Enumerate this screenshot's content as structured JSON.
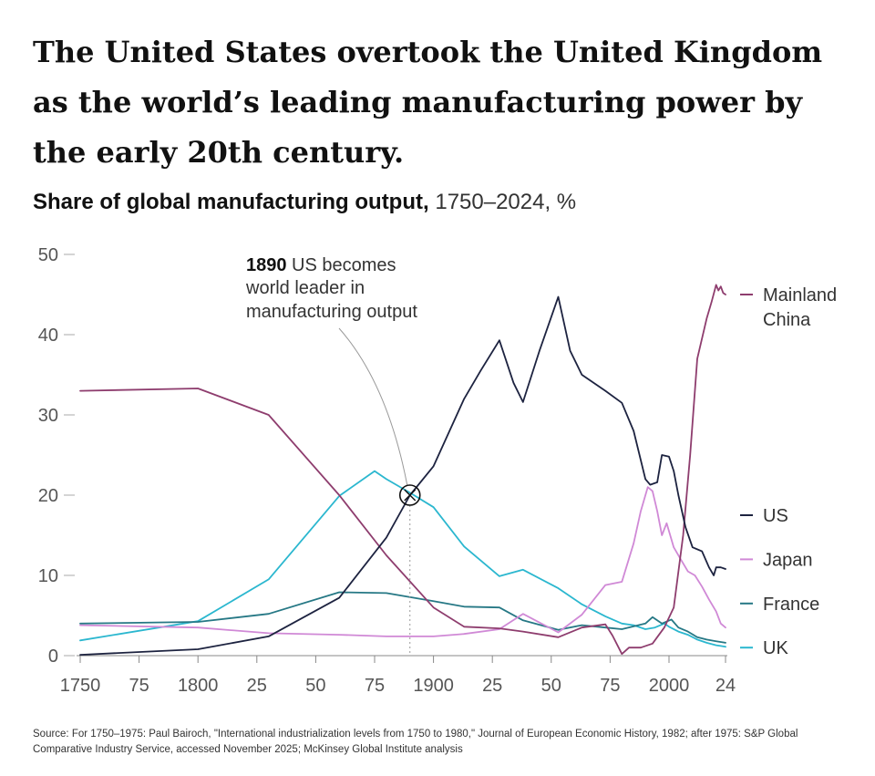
{
  "header": {
    "title": "The United States overtook the United Kingdom as the world’s leading manufacturing power by the early 20th century.",
    "subtitle_bold": "Share of global manufacturing output,",
    "subtitle_rest": " 1750–2024, %"
  },
  "annotation": {
    "year": "1890",
    "line1": " US becomes",
    "line2": "world leader in",
    "line3": "manufacturing output",
    "crossover_year": 1890,
    "crossover_value": 20
  },
  "source": "Source: For 1750–1975: Paul Bairoch, \"International industrialization levels from 1750 to 1980,\" Journal of European Economic History, 1982; after 1975: S&P Global Comparative Industry Service, accessed November 2025; McKinsey Global Institute analysis",
  "chart_data": {
    "type": "line",
    "title": "Share of global manufacturing output, 1750–2024, %",
    "xlabel": "",
    "ylabel": "",
    "xlim": [
      1750,
      2024
    ],
    "ylim": [
      0,
      50
    ],
    "grid": false,
    "x_ticks": [
      1750,
      1775,
      1800,
      1825,
      1850,
      1875,
      1900,
      1925,
      1950,
      1975,
      2000,
      2024
    ],
    "x_tick_labels": [
      "1750",
      "75",
      "1800",
      "25",
      "50",
      "75",
      "1900",
      "25",
      "50",
      "75",
      "2000",
      "24"
    ],
    "y_ticks": [
      0,
      10,
      20,
      30,
      40,
      50
    ],
    "y_tick_labels": [
      "0",
      "10",
      "20",
      "30",
      "40",
      "50"
    ],
    "series": [
      {
        "name": "Mainland China",
        "label_lines": [
          "Mainland",
          "China"
        ],
        "label_value": 45,
        "color": "#8e3d6e",
        "points": [
          [
            1750,
            33
          ],
          [
            1800,
            33.3
          ],
          [
            1830,
            30
          ],
          [
            1860,
            20
          ],
          [
            1880,
            12.5
          ],
          [
            1900,
            6
          ],
          [
            1913,
            3.6
          ],
          [
            1928,
            3.4
          ],
          [
            1938,
            3
          ],
          [
            1953,
            2.3
          ],
          [
            1963,
            3.5
          ],
          [
            1973,
            3.9
          ],
          [
            1976,
            2.5
          ],
          [
            1980,
            0.2
          ],
          [
            1983,
            1
          ],
          [
            1988,
            1
          ],
          [
            1993,
            1.5
          ],
          [
            1998,
            3.5
          ],
          [
            2002,
            6
          ],
          [
            2006,
            15
          ],
          [
            2009,
            25
          ],
          [
            2012,
            37
          ],
          [
            2016,
            42
          ],
          [
            2018,
            44
          ],
          [
            2020,
            46.2
          ],
          [
            2021,
            45.5
          ],
          [
            2022,
            46
          ],
          [
            2023,
            45.2
          ],
          [
            2024,
            45
          ]
        ]
      },
      {
        "name": "US",
        "label_lines": [
          "US"
        ],
        "label_value": 17.5,
        "color": "#1d2340",
        "points": [
          [
            1750,
            0.1
          ],
          [
            1800,
            0.8
          ],
          [
            1830,
            2.4
          ],
          [
            1860,
            7.2
          ],
          [
            1880,
            14.7
          ],
          [
            1890,
            20
          ],
          [
            1900,
            23.6
          ],
          [
            1913,
            32
          ],
          [
            1920,
            35.5
          ],
          [
            1928,
            39.3
          ],
          [
            1934,
            34
          ],
          [
            1938,
            31.6
          ],
          [
            1945,
            38
          ],
          [
            1953,
            44.7
          ],
          [
            1958,
            38
          ],
          [
            1963,
            35
          ],
          [
            1973,
            33
          ],
          [
            1980,
            31.5
          ],
          [
            1985,
            28
          ],
          [
            1990,
            22
          ],
          [
            1992,
            21.3
          ],
          [
            1995,
            21.6
          ],
          [
            1997,
            25
          ],
          [
            2000,
            24.8
          ],
          [
            2002,
            23
          ],
          [
            2004,
            20
          ],
          [
            2007,
            16
          ],
          [
            2010,
            13.5
          ],
          [
            2014,
            13
          ],
          [
            2017,
            11
          ],
          [
            2019,
            10
          ],
          [
            2020,
            11
          ],
          [
            2022,
            11
          ],
          [
            2024,
            10.8
          ]
        ]
      },
      {
        "name": "Japan",
        "label_lines": [
          "Japan"
        ],
        "label_value": 12,
        "color": "#d089d6",
        "points": [
          [
            1750,
            3.8
          ],
          [
            1800,
            3.5
          ],
          [
            1830,
            2.8
          ],
          [
            1860,
            2.6
          ],
          [
            1880,
            2.4
          ],
          [
            1900,
            2.4
          ],
          [
            1913,
            2.7
          ],
          [
            1928,
            3.3
          ],
          [
            1938,
            5.2
          ],
          [
            1953,
            2.9
          ],
          [
            1963,
            5.1
          ],
          [
            1973,
            8.8
          ],
          [
            1980,
            9.2
          ],
          [
            1985,
            14
          ],
          [
            1988,
            18
          ],
          [
            1991,
            21
          ],
          [
            1993,
            20.5
          ],
          [
            1995,
            18
          ],
          [
            1997,
            15
          ],
          [
            1999,
            16.5
          ],
          [
            2002,
            13.5
          ],
          [
            2005,
            12
          ],
          [
            2008,
            10.5
          ],
          [
            2011,
            10
          ],
          [
            2014,
            8.6
          ],
          [
            2017,
            7
          ],
          [
            2020,
            5.5
          ],
          [
            2022,
            4
          ],
          [
            2024,
            3.5
          ]
        ]
      },
      {
        "name": "France",
        "label_lines": [
          "France"
        ],
        "label_value": 6.5,
        "color": "#267885",
        "points": [
          [
            1750,
            4
          ],
          [
            1800,
            4.2
          ],
          [
            1830,
            5.2
          ],
          [
            1860,
            7.9
          ],
          [
            1880,
            7.8
          ],
          [
            1900,
            6.8
          ],
          [
            1913,
            6.1
          ],
          [
            1928,
            6
          ],
          [
            1938,
            4.4
          ],
          [
            1953,
            3.2
          ],
          [
            1963,
            3.8
          ],
          [
            1973,
            3.5
          ],
          [
            1980,
            3.3
          ],
          [
            1990,
            4
          ],
          [
            1993,
            4.8
          ],
          [
            1997,
            4
          ],
          [
            2001,
            4.5
          ],
          [
            2004,
            3.5
          ],
          [
            2008,
            3
          ],
          [
            2012,
            2.3
          ],
          [
            2016,
            2
          ],
          [
            2020,
            1.8
          ],
          [
            2024,
            1.6
          ]
        ]
      },
      {
        "name": "UK",
        "label_lines": [
          "UK"
        ],
        "label_value": 1,
        "color": "#2bb7cf",
        "points": [
          [
            1750,
            1.9
          ],
          [
            1800,
            4.3
          ],
          [
            1830,
            9.5
          ],
          [
            1860,
            19.9
          ],
          [
            1875,
            23
          ],
          [
            1880,
            22
          ],
          [
            1890,
            20.3
          ],
          [
            1900,
            18.5
          ],
          [
            1913,
            13.6
          ],
          [
            1928,
            9.9
          ],
          [
            1938,
            10.7
          ],
          [
            1953,
            8.4
          ],
          [
            1963,
            6.4
          ],
          [
            1973,
            4.9
          ],
          [
            1980,
            4
          ],
          [
            1985,
            3.8
          ],
          [
            1990,
            3.3
          ],
          [
            1994,
            3.5
          ],
          [
            1998,
            4
          ],
          [
            2000,
            3.6
          ],
          [
            2004,
            3
          ],
          [
            2008,
            2.6
          ],
          [
            2012,
            2
          ],
          [
            2016,
            1.6
          ],
          [
            2020,
            1.3
          ],
          [
            2022,
            1.2
          ],
          [
            2024,
            1.1
          ]
        ]
      }
    ]
  }
}
